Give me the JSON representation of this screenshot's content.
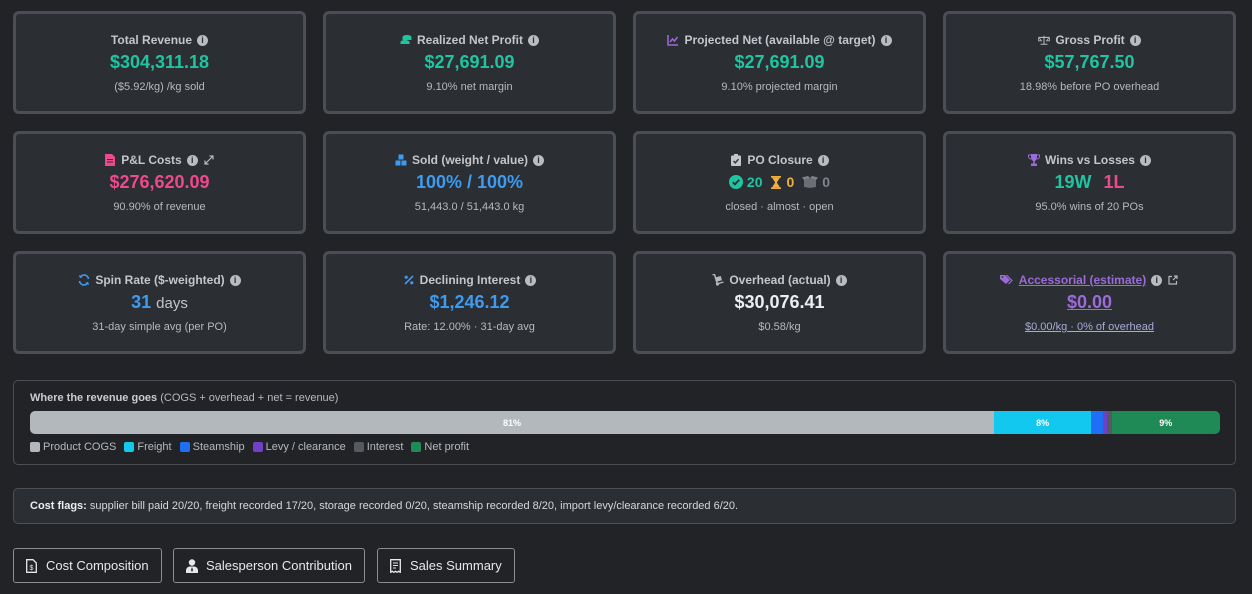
{
  "cards": {
    "total_revenue": {
      "label": "Total Revenue",
      "value": "$304,311.18",
      "sub": "($5.92/kg) /kg sold"
    },
    "realized_net": {
      "label": "Realized Net Profit",
      "value": "$27,691.09",
      "sub": "9.10% net margin"
    },
    "projected_net": {
      "label": "Projected Net (available @ target)",
      "value": "$27,691.09",
      "sub": "9.10% projected margin"
    },
    "gross_profit": {
      "label": "Gross Profit",
      "value": "$57,767.50",
      "sub": "18.98% before PO overhead"
    },
    "pl_costs": {
      "label": "P&L Costs",
      "value": "$276,620.09",
      "sub": "90.90% of revenue"
    },
    "sold": {
      "label": "Sold (weight / value)",
      "value": "100% / 100%",
      "sub": "51,443.0 / 51,443.0 kg"
    },
    "po_closure": {
      "label": "PO Closure",
      "closed": "20",
      "almost": "0",
      "open": "0",
      "sub": "closed · almost · open"
    },
    "wins_losses": {
      "label": "Wins vs Losses",
      "wins": "19W",
      "losses": "1L",
      "sub": "95.0% wins of 20 POs"
    },
    "spin_rate": {
      "label": "Spin Rate ($-weighted)",
      "value": "31",
      "unit": "days",
      "sub": "31-day simple avg (per PO)"
    },
    "declining_interest": {
      "label": "Declining Interest",
      "value": "$1,246.12",
      "sub": "Rate: 12.00% · 31-day avg"
    },
    "overhead": {
      "label": "Overhead (actual)",
      "value": "$30,076.41",
      "sub": "$0.58/kg"
    },
    "accessorial": {
      "label": "Accessorial (estimate)",
      "value": "$0.00",
      "sub": "$0.00/kg · 0% of overhead"
    }
  },
  "revenue_breakdown": {
    "title": "Where the revenue goes",
    "subtitle": "(COGS + overhead + net = revenue)",
    "segments": [
      {
        "name": "Product COGS",
        "percent": 81,
        "label": "81%",
        "color": "#b3b8bd"
      },
      {
        "name": "Freight",
        "percent": 8.2,
        "label": "8%",
        "color": "#13c8ef"
      },
      {
        "name": "Steamship",
        "percent": 1.0,
        "label": "",
        "color": "#1f6ff5"
      },
      {
        "name": "Levy / clearance",
        "percent": 0.3,
        "label": "",
        "color": "#7040c8"
      },
      {
        "name": "Interest",
        "percent": 0.4,
        "label": "",
        "color": "#565a60"
      },
      {
        "name": "Net profit",
        "percent": 9.1,
        "label": "9%",
        "color": "#1f8a56"
      }
    ]
  },
  "cost_flags": {
    "label": "Cost flags:",
    "text": "supplier bill paid 20/20, freight recorded 17/20, storage recorded 0/20, steamship recorded 8/20, import levy/clearance recorded 6/20."
  },
  "buttons": {
    "cost_composition": "Cost Composition",
    "salesperson_contribution": "Salesperson Contribution",
    "sales_summary": "Sales Summary"
  },
  "colors": {
    "green": "#20c4a0",
    "pink": "#ec4a8c",
    "blue": "#3d9bf0",
    "purple": "#9b6bd8",
    "amber": "#f0b040"
  }
}
